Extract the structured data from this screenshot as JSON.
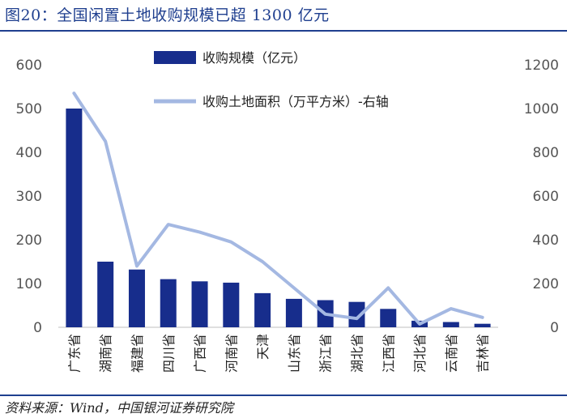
{
  "figure": {
    "title": "图20：全国闲置土地收购规模已超 1300 亿元",
    "source": "资料来源：Wind，中国银河证券研究院"
  },
  "colors": {
    "bar": "#172d8c",
    "line": "#a4b8e2",
    "title": "#1f3f8f",
    "axis_text": "#555555"
  },
  "chart_data": {
    "type": "bar",
    "categories": [
      "广东省",
      "湖南省",
      "福建省",
      "四川省",
      "广西省",
      "河南省",
      "天津",
      "山东省",
      "浙江省",
      "湖北省",
      "江西省",
      "河北省",
      "云南省",
      "吉林省"
    ],
    "series": [
      {
        "name": "收购规模（亿元）",
        "type": "bar",
        "axis": "left",
        "values": [
          500,
          150,
          132,
          110,
          105,
          102,
          78,
          65,
          62,
          58,
          42,
          15,
          12,
          8
        ]
      },
      {
        "name": "收购土地面积（万平方米）-右轴",
        "type": "line",
        "axis": "right",
        "values": [
          1070,
          850,
          280,
          470,
          435,
          390,
          300,
          180,
          60,
          40,
          180,
          15,
          85,
          45
        ]
      }
    ],
    "y_left": {
      "min": 0,
      "max": 600,
      "ticks": [
        "0",
        "100",
        "200",
        "300",
        "400",
        "500",
        "600"
      ]
    },
    "y_right": {
      "min": 0,
      "max": 1200,
      "ticks": [
        "0",
        "200",
        "400",
        "600",
        "800",
        "1000",
        "1200"
      ]
    },
    "legend_position": "top-center",
    "grid": false
  }
}
